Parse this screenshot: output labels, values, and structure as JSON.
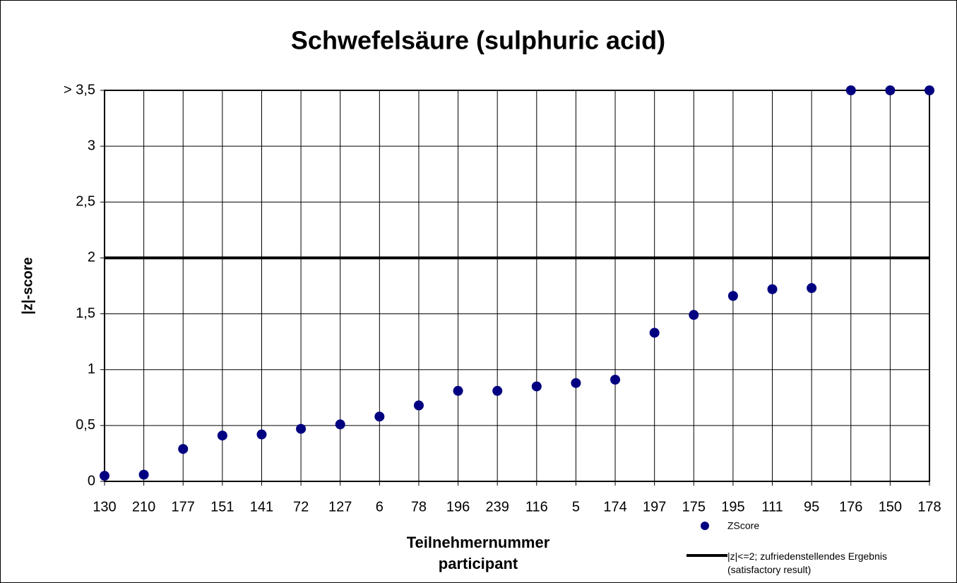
{
  "chart_data": {
    "type": "scatter",
    "title": "Schwefelsäure (sulphuric acid)",
    "xlabel": "Teilnehmernummer\nparticipant",
    "ylabel": "|z|-score",
    "categories": [
      "130",
      "210",
      "177",
      "151",
      "141",
      "72",
      "127",
      "6",
      "78",
      "196",
      "239",
      "116",
      "5",
      "174",
      "197",
      "175",
      "195",
      "111",
      "95",
      "176",
      "150",
      "178"
    ],
    "series": [
      {
        "name": "ZScore",
        "color": "#000080",
        "values": [
          0.05,
          0.06,
          0.29,
          0.41,
          0.42,
          0.47,
          0.51,
          0.58,
          0.68,
          0.81,
          0.81,
          0.85,
          0.88,
          0.91,
          1.33,
          1.49,
          1.66,
          1.72,
          1.73,
          3.5,
          3.5,
          3.5
        ]
      }
    ],
    "reference_line": {
      "name": "|z|<=2; zufriedenstellendes Ergebnis\n(satisfactory result)",
      "value": 2,
      "color": "#000000"
    },
    "ylim": [
      0,
      3.5
    ],
    "yticks": [
      0,
      {
        "value": 0.5,
        "label": "0,5"
      },
      1,
      {
        "value": 1.5,
        "label": "1,5"
      },
      2,
      {
        "value": 2.5,
        "label": "2,5"
      },
      3,
      {
        "value": 3.5,
        "label": "> 3,5"
      }
    ],
    "grid": true
  }
}
